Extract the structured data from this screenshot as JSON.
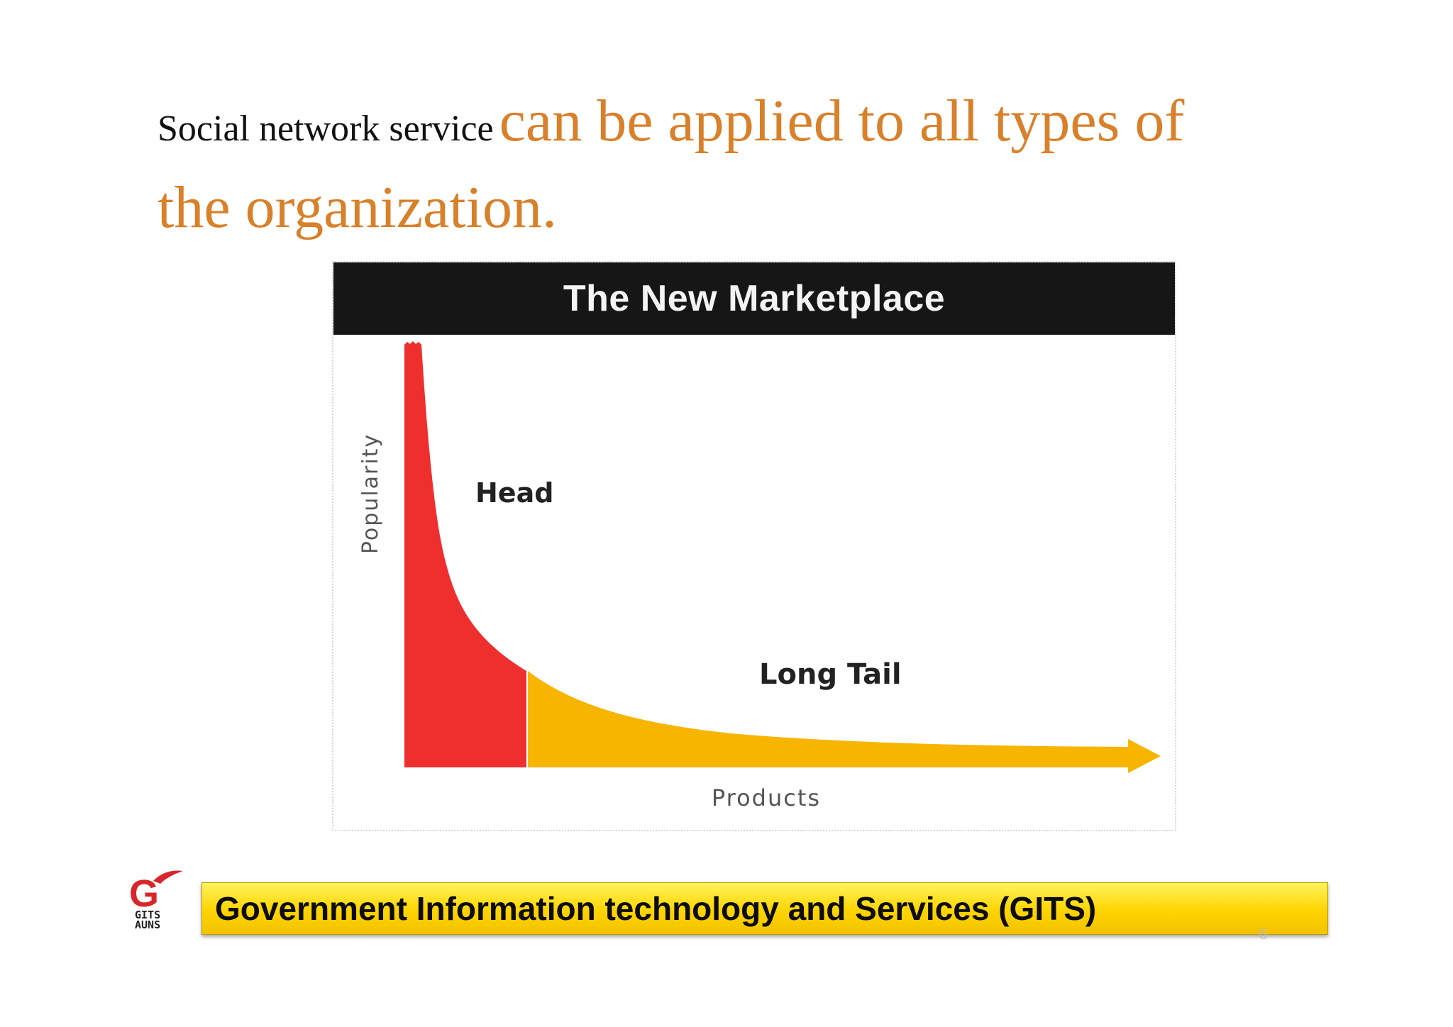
{
  "slide": {
    "heading_lead": "Social network service",
    "heading_main": "can be applied to all types of  the organization.",
    "page_number": "6"
  },
  "chart_data": {
    "type": "area",
    "title": "The New Marketplace",
    "xlabel": "Products",
    "ylabel": "Popularity",
    "regions": [
      {
        "name": "Head",
        "label": "Head",
        "color": "#ef2e2e"
      },
      {
        "name": "Long Tail",
        "label": "Long Tail",
        "color": "#f7b500"
      }
    ],
    "annotations": [
      "Head",
      "Long Tail"
    ],
    "grid": false,
    "legend": "none"
  },
  "footer": {
    "banner_text": "Government Information technology and Services (GITS)",
    "logo_letter": "G",
    "logo_line1": "GITS",
    "logo_line2": "AUNS",
    "logo_color": "#d8262a",
    "banner_color": "#ffd400"
  }
}
